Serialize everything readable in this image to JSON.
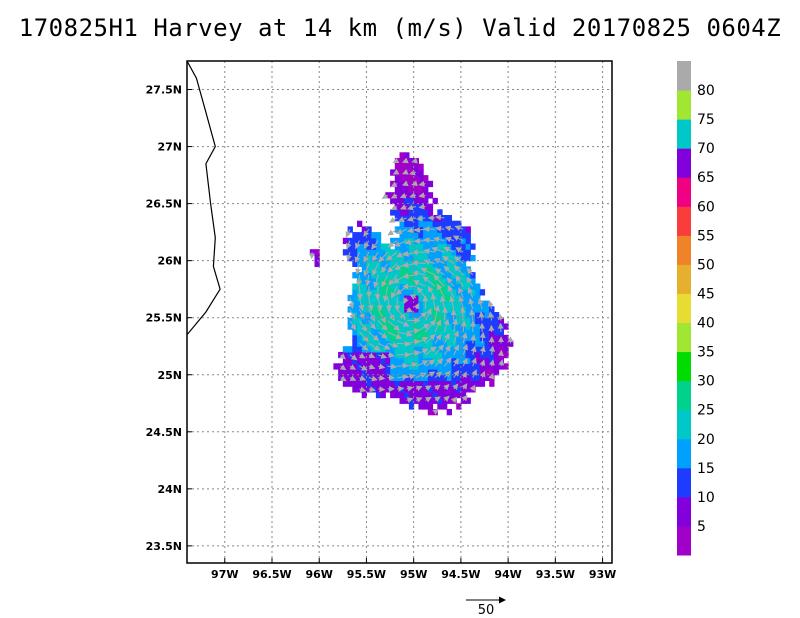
{
  "title": "170825H1 Harvey at 14 km (m/s) Valid 20170825 0604Z",
  "map": {
    "lon_range": [
      -97.4,
      -92.9
    ],
    "lat_range": [
      23.35,
      27.75
    ],
    "lon_ticks": [
      {
        "value": -97.0,
        "label": "97W"
      },
      {
        "value": -96.5,
        "label": "96.5W"
      },
      {
        "value": -96.0,
        "label": "96W"
      },
      {
        "value": -95.5,
        "label": "95.5W"
      },
      {
        "value": -95.0,
        "label": "95W"
      },
      {
        "value": -94.5,
        "label": "94.5W"
      },
      {
        "value": -94.0,
        "label": "94W"
      },
      {
        "value": -93.5,
        "label": "93.5W"
      },
      {
        "value": -93.0,
        "label": "93W"
      }
    ],
    "lat_ticks": [
      {
        "value": 23.5,
        "label": "23.5N"
      },
      {
        "value": 24.0,
        "label": "24N"
      },
      {
        "value": 24.5,
        "label": "24.5N"
      },
      {
        "value": 25.0,
        "label": "25N"
      },
      {
        "value": 25.5,
        "label": "25.5N"
      },
      {
        "value": 26.0,
        "label": "26N"
      },
      {
        "value": 26.5,
        "label": "26.5N"
      },
      {
        "value": 27.0,
        "label": "27N"
      },
      {
        "value": 27.5,
        "label": "27.5N"
      }
    ],
    "grid": true,
    "storm_center": {
      "lon": -95.05,
      "lat": 25.6
    },
    "coastline": [
      [
        -97.4,
        27.75
      ],
      [
        -97.3,
        27.6
      ],
      [
        -97.2,
        27.3
      ],
      [
        -97.1,
        27.0
      ],
      [
        -97.2,
        26.85
      ],
      [
        -97.15,
        26.5
      ],
      [
        -97.1,
        26.2
      ],
      [
        -97.12,
        25.95
      ],
      [
        -97.05,
        25.75
      ],
      [
        -97.2,
        25.55
      ],
      [
        -97.4,
        25.35
      ]
    ]
  },
  "colorbar": {
    "labels": [
      "5",
      "10",
      "15",
      "20",
      "25",
      "30",
      "35",
      "40",
      "45",
      "50",
      "55",
      "60",
      "65",
      "70",
      "75",
      "80"
    ],
    "colors": [
      "#a000c8",
      "#8200dc",
      "#1e3cff",
      "#00a0ff",
      "#00c8c8",
      "#00d28c",
      "#00dc00",
      "#a0e632",
      "#e6dc32",
      "#e6af2d",
      "#f08228",
      "#fa3c3c",
      "#f00082",
      "#8200dc",
      "#00c8c8",
      "#a0e632",
      "#aaaaaa"
    ]
  },
  "reference_vector": {
    "label": "50"
  },
  "chart_data": {
    "type": "heatmap",
    "title": "170825H1 Harvey at 14 km (m/s) Valid 20170825 0604Z",
    "variable": "wind speed (m/s)",
    "xlim": [
      -97.4,
      -92.9
    ],
    "ylim": [
      23.35,
      27.75
    ],
    "xlabel": "",
    "ylabel": "",
    "levels": [
      5,
      10,
      15,
      20,
      25,
      30,
      35,
      40,
      45,
      50,
      55,
      60,
      65,
      70,
      75,
      80
    ],
    "approx_max_wind": 27,
    "vector_reference": 50
  }
}
